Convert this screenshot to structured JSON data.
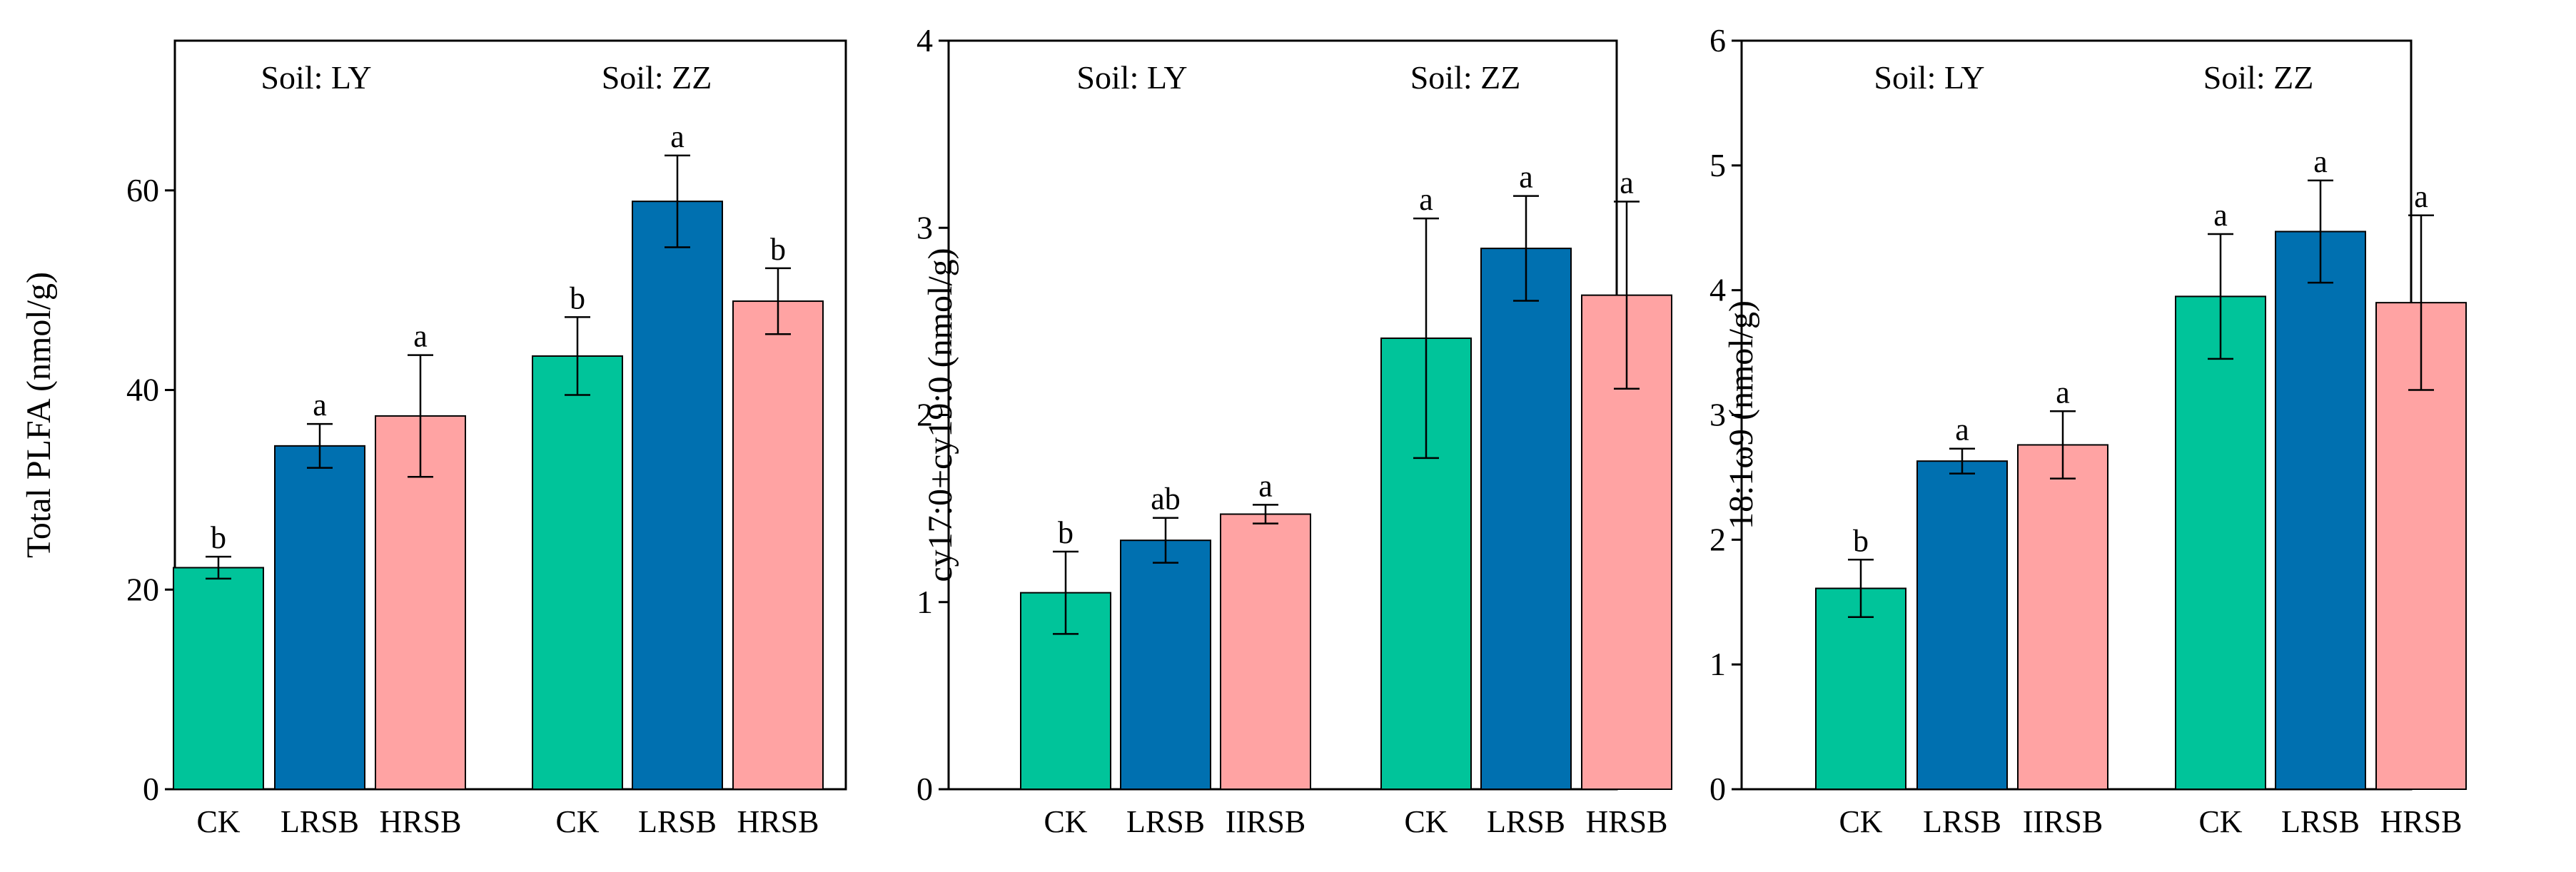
{
  "colors": {
    "CK": "#00c49a",
    "LRSB": "#0070b0",
    "HRSB": "#ffa3a3"
  },
  "chart_data": [
    {
      "type": "bar",
      "ylabel": "Total PLFA (nmol/g)",
      "ylim": [
        0,
        75
      ],
      "yticks": [
        0,
        20,
        40,
        60
      ],
      "ytick_labels": [
        "0",
        "20",
        "40",
        "60"
      ],
      "groups": [
        {
          "label": "Soil: LY",
          "categories": [
            "CK",
            "LRSB",
            "HRSB"
          ],
          "values": [
            22.2,
            34.4,
            37.4
          ],
          "errors": [
            1.1,
            2.2,
            6.1
          ],
          "sig": [
            "b",
            "a",
            "a"
          ]
        },
        {
          "label": "Soil: ZZ",
          "categories": [
            "CK",
            "LRSB",
            "HRSB"
          ],
          "values": [
            43.4,
            58.9,
            48.9
          ],
          "errors": [
            3.9,
            4.6,
            3.3
          ],
          "sig": [
            "b",
            "a",
            "b"
          ]
        }
      ]
    },
    {
      "type": "bar",
      "ylabel": "cy17:0+cy19:0 (nmol/g)",
      "ylim": [
        0,
        4
      ],
      "yticks": [
        0,
        1,
        2,
        3,
        4
      ],
      "ytick_labels": [
        "0",
        "1",
        "2",
        "3",
        "4"
      ],
      "groups": [
        {
          "label": "Soil: LY",
          "categories": [
            "CK",
            "LRSB",
            "IIRSB"
          ],
          "values": [
            1.05,
            1.33,
            1.47
          ],
          "errors": [
            0.22,
            0.12,
            0.05
          ],
          "sig": [
            "b",
            "ab",
            "a"
          ]
        },
        {
          "label": "Soil: ZZ",
          "categories": [
            "CK",
            "LRSB",
            "HRSB"
          ],
          "values": [
            2.41,
            2.89,
            2.64
          ],
          "errors": [
            0.64,
            0.28,
            0.5
          ],
          "sig": [
            "a",
            "a",
            "a"
          ]
        }
      ]
    },
    {
      "type": "bar",
      "ylabel": "18:1ω9  (nmol/g)",
      "ylim": [
        0,
        6
      ],
      "yticks": [
        0,
        1,
        2,
        3,
        4,
        5,
        6
      ],
      "ytick_labels": [
        "0",
        "1",
        "2",
        "3",
        "4",
        "5",
        "6"
      ],
      "groups": [
        {
          "label": "Soil: LY",
          "categories": [
            "CK",
            "LRSB",
            "IIRSB"
          ],
          "values": [
            1.61,
            2.63,
            2.76
          ],
          "errors": [
            0.23,
            0.1,
            0.27
          ],
          "sig": [
            "b",
            "a",
            "a"
          ]
        },
        {
          "label": "Soil: ZZ",
          "categories": [
            "CK",
            "LRSB",
            "HRSB"
          ],
          "values": [
            3.95,
            4.47,
            3.9
          ],
          "errors": [
            0.5,
            0.41,
            0.7
          ],
          "sig": [
            "a",
            "a",
            "a"
          ]
        }
      ]
    }
  ]
}
